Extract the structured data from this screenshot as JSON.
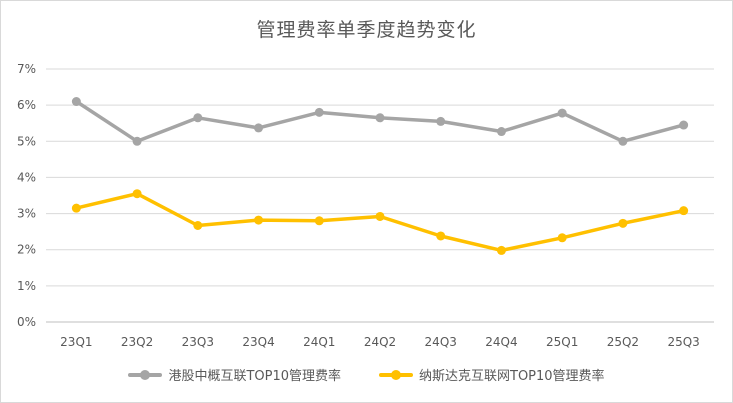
{
  "chart_data": {
    "type": "line",
    "title": "管理费率单季度趋势变化",
    "categories": [
      "23Q1",
      "23Q2",
      "23Q3",
      "23Q4",
      "24Q1",
      "24Q2",
      "24Q3",
      "24Q4",
      "25Q1",
      "25Q2",
      "25Q3"
    ],
    "ylim": [
      0,
      7
    ],
    "yticks": [
      "0%",
      "1%",
      "2%",
      "3%",
      "4%",
      "5%",
      "6%",
      "7%"
    ],
    "grid": true,
    "legend_position": "bottom",
    "series": [
      {
        "name": "港股中概互联TOP10管理费率",
        "color": "#a5a5a5",
        "values": [
          6.1,
          5.0,
          5.65,
          5.37,
          5.8,
          5.65,
          5.55,
          5.27,
          5.78,
          5.0,
          5.45
        ]
      },
      {
        "name": "纳斯达克互联网TOP10管理费率",
        "color": "#ffc000",
        "values": [
          3.15,
          3.55,
          2.67,
          2.82,
          2.8,
          2.92,
          2.38,
          1.98,
          2.33,
          2.73,
          3.08
        ]
      }
    ]
  }
}
